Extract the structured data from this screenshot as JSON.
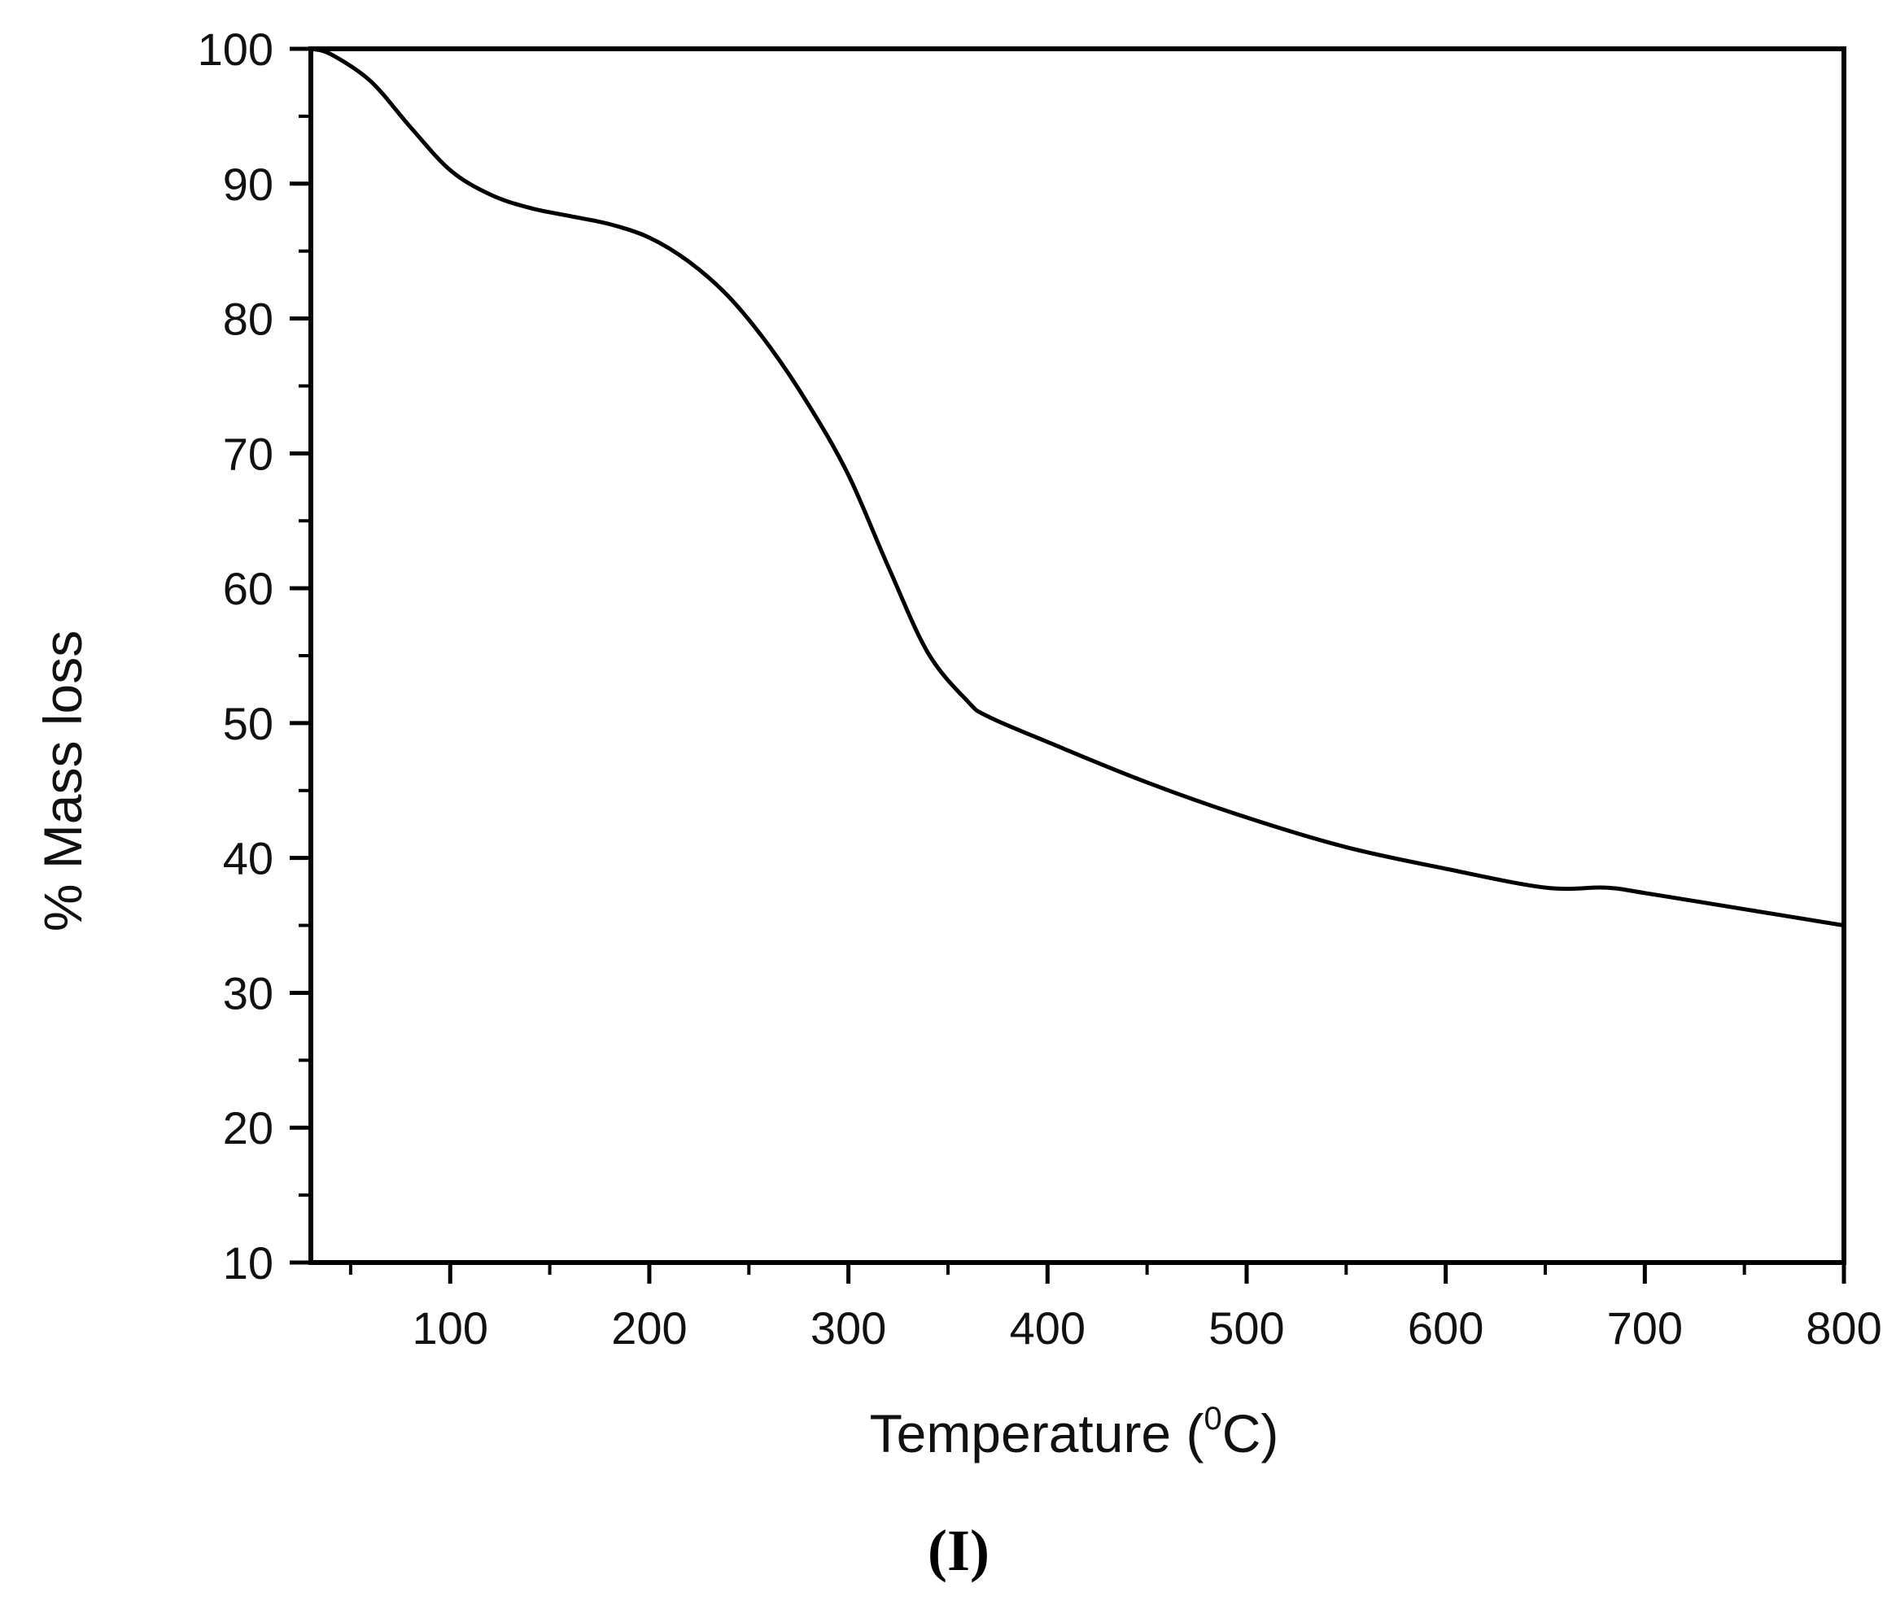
{
  "chart_data": {
    "type": "line",
    "title": "",
    "xlabel": "Temperature (",
    "xlabel_sup": "0",
    "xlabel_unit": "C)",
    "ylabel": "% Mass loss",
    "panel_label": "(I)",
    "xlim": [
      30,
      800
    ],
    "ylim": [
      10,
      100
    ],
    "x_ticks": [
      100,
      200,
      300,
      400,
      500,
      600,
      700,
      800
    ],
    "y_ticks": [
      10,
      20,
      30,
      40,
      50,
      60,
      70,
      80,
      90,
      100
    ],
    "x_tick_labels": [
      "100",
      "200",
      "300",
      "400",
      "500",
      "600",
      "700",
      "800"
    ],
    "y_tick_labels": [
      "10",
      "20",
      "30",
      "40",
      "50",
      "60",
      "70",
      "80",
      "90",
      "100"
    ],
    "grid": false,
    "legend": "none",
    "line_color": "#000000",
    "series": [
      {
        "x": [
          30,
          40,
          60,
          80,
          100,
          120,
          140,
          160,
          180,
          200,
          220,
          240,
          260,
          280,
          300,
          320,
          340,
          360,
          370,
          400,
          450,
          500,
          550,
          600,
          650,
          680,
          700,
          750,
          800
        ],
        "values": [
          100,
          99.6,
          97.6,
          94.2,
          91.0,
          89.2,
          88.2,
          87.6,
          87.0,
          86.0,
          84.2,
          81.6,
          78.0,
          73.6,
          68.4,
          61.6,
          55.2,
          51.6,
          50.5,
          48.6,
          45.6,
          43.0,
          40.8,
          39.2,
          37.8,
          37.8,
          37.4,
          36.2,
          35.0
        ]
      }
    ]
  }
}
